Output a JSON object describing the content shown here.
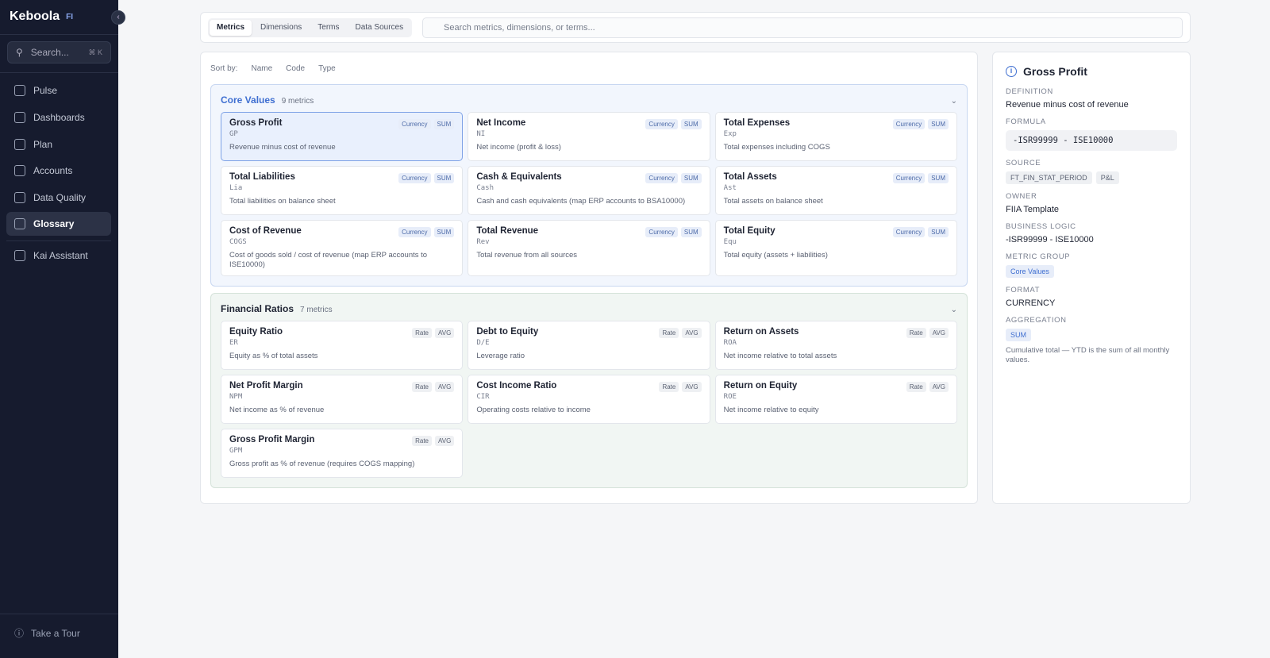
{
  "sidebar": {
    "brand": "Keboola",
    "badge": "FI",
    "search": "Search...",
    "shortcut": "⌘ K",
    "nav": [
      "Pulse",
      "Dashboards",
      "Plan",
      "Accounts",
      "Data Quality",
      "Glossary",
      "Kai Assistant"
    ],
    "footer": "Take a Tour"
  },
  "tabs": [
    "Metrics",
    "Dimensions",
    "Terms",
    "Data Sources"
  ],
  "search_placeholder": "Search metrics, dimensions, or terms...",
  "sort": {
    "label": "Sort by:",
    "options": [
      "Name",
      "Code",
      "Type"
    ]
  },
  "groups": [
    {
      "name": "Core Values",
      "count": "9 metrics",
      "metrics": [
        {
          "name": "Gross Profit",
          "code": "GP",
          "desc": "Revenue minus cost of revenue",
          "tags": [
            "Currency",
            "SUM"
          ]
        },
        {
          "name": "Net Income",
          "code": "NI",
          "desc": "Net income (profit & loss)",
          "tags": [
            "Currency",
            "SUM"
          ]
        },
        {
          "name": "Total Expenses",
          "code": "Exp",
          "desc": "Total expenses including COGS",
          "tags": [
            "Currency",
            "SUM"
          ]
        },
        {
          "name": "Total Liabilities",
          "code": "Lia",
          "desc": "Total liabilities on balance sheet",
          "tags": [
            "Currency",
            "SUM"
          ]
        },
        {
          "name": "Cash & Equivalents",
          "code": "Cash",
          "desc": "Cash and cash equivalents (map ERP accounts to BSA10000)",
          "tags": [
            "Currency",
            "SUM"
          ]
        },
        {
          "name": "Total Assets",
          "code": "Ast",
          "desc": "Total assets on balance sheet",
          "tags": [
            "Currency",
            "SUM"
          ]
        },
        {
          "name": "Cost of Revenue",
          "code": "COGS",
          "desc": "Cost of goods sold / cost of revenue (map ERP accounts to ISE10000)",
          "tags": [
            "Currency",
            "SUM"
          ]
        },
        {
          "name": "Total Revenue",
          "code": "Rev",
          "desc": "Total revenue from all sources",
          "tags": [
            "Currency",
            "SUM"
          ]
        },
        {
          "name": "Total Equity",
          "code": "Equ",
          "desc": "Total equity (assets + liabilities)",
          "tags": [
            "Currency",
            "SUM"
          ]
        }
      ]
    },
    {
      "name": "Financial Ratios",
      "count": "7 metrics",
      "metrics": [
        {
          "name": "Equity Ratio",
          "code": "ER",
          "desc": "Equity as % of total assets",
          "tags": [
            "Rate",
            "AVG"
          ]
        },
        {
          "name": "Debt to Equity",
          "code": "D/E",
          "desc": "Leverage ratio",
          "tags": [
            "Rate",
            "AVG"
          ]
        },
        {
          "name": "Return on Assets",
          "code": "ROA",
          "desc": "Net income relative to total assets",
          "tags": [
            "Rate",
            "AVG"
          ]
        },
        {
          "name": "Net Profit Margin",
          "code": "NPM",
          "desc": "Net income as % of revenue",
          "tags": [
            "Rate",
            "AVG"
          ]
        },
        {
          "name": "Cost Income Ratio",
          "code": "CIR",
          "desc": "Operating costs relative to income",
          "tags": [
            "Rate",
            "AVG"
          ]
        },
        {
          "name": "Return on Equity",
          "code": "ROE",
          "desc": "Net income relative to equity",
          "tags": [
            "Rate",
            "AVG"
          ]
        },
        {
          "name": "Gross Profit Margin",
          "code": "GPM",
          "desc": "Gross profit as % of revenue (requires COGS mapping)",
          "tags": [
            "Rate",
            "AVG"
          ]
        }
      ]
    }
  ],
  "detail": {
    "title": "Gross Profit",
    "fields": [
      {
        "label": "DEFINITION",
        "value": "Revenue minus cost of revenue"
      },
      {
        "label": "FORMULA",
        "code": "-ISR99999 - ISE10000"
      },
      {
        "label": "SOURCE",
        "tags": [
          "FT_FIN_STAT_PERIOD",
          "P&L"
        ]
      },
      {
        "label": "OWNER",
        "value": "FIIA Template"
      },
      {
        "label": "BUSINESS LOGIC",
        "value": "-ISR99999 - ISE10000"
      },
      {
        "label": "METRIC GROUP",
        "tags": [
          "Core Values"
        ]
      },
      {
        "label": "FORMAT",
        "value": "CURRENCY"
      },
      {
        "label": "AGGREGATION",
        "tags": [
          "SUM"
        ],
        "note": "Cumulative total — YTD is the sum of all monthly values."
      }
    ]
  }
}
